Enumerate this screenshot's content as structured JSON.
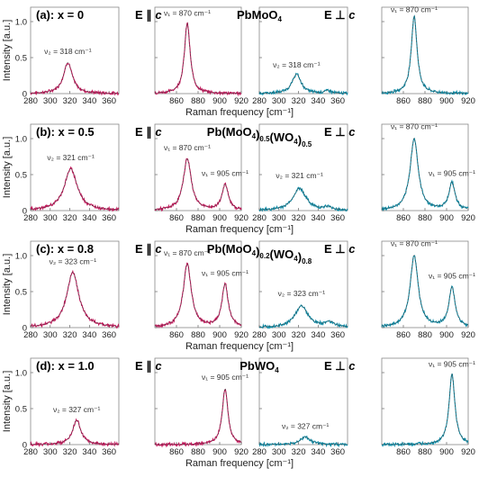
{
  "chart_data": {
    "type": "line",
    "ylabel": "Intensity [a.u.]",
    "xlabel": "Raman frequency [cm⁻¹]",
    "ylim": [
      0,
      1.2
    ],
    "yticks": [
      "0",
      "0.5",
      "1.0"
    ],
    "yticks_values": [
      0,
      0.5,
      1.0
    ],
    "subranges": [
      {
        "xlim": [
          280,
          370
        ],
        "ticks": [
          280,
          300,
          320,
          340,
          360
        ]
      },
      {
        "xlim": [
          840,
          920
        ],
        "ticks": [
          860,
          880,
          900,
          920
        ]
      }
    ],
    "polarization_labels": {
      "parallel": "E ∥ ",
      "perpendicular": "E ⊥ ",
      "axis": "c"
    },
    "colors": {
      "parallel": "#c2185b",
      "perpendicular": "#0e8ba6",
      "fit": "#444444"
    },
    "panels": [
      {
        "label": "(a):  x = 0",
        "formula": "PbMoO",
        "formula_sub": "4",
        "formula_mid": "",
        "formula_sub2": "",
        "parallel_peaks": [
          {
            "center": 318,
            "height": 0.43,
            "width": 5.5
          },
          {
            "center": 870,
            "height": 0.98,
            "width": 3.2
          }
        ],
        "perpendicular_peaks": [
          {
            "center": 318,
            "height": 0.27,
            "width": 5.5
          },
          {
            "center": 350,
            "height": 0.04,
            "width": 4
          },
          {
            "center": 870,
            "height": 1.08,
            "width": 3.2
          }
        ],
        "parallel_annotations": [
          {
            "text": "ν₂ = 318 cm⁻¹",
            "x": 318,
            "y": 0.55
          },
          {
            "text": "ν₁ = 870 cm⁻¹",
            "x": 870,
            "y": 1.08
          }
        ],
        "perpendicular_annotations": [
          {
            "text": "ν₂ = 318 cm⁻¹",
            "x": 318,
            "y": 0.36
          },
          {
            "text": "ν₁ = 870 cm⁻¹",
            "x": 870,
            "y": 1.13
          }
        ]
      },
      {
        "label": "(b):  x = 0.5",
        "formula": "Pb(MoO",
        "formula_sub": "4",
        "formula_mid": ")",
        "formula_sub2": "0.5",
        "formula_tail": "(WO",
        "formula_sub3": "4",
        "formula_tail2": ")",
        "formula_sub4": "0.5",
        "parallel_peaks": [
          {
            "center": 321,
            "height": 0.58,
            "width": 8
          },
          {
            "center": 870,
            "height": 0.72,
            "width": 4.5
          },
          {
            "center": 905,
            "height": 0.36,
            "width": 3.5
          }
        ],
        "perpendicular_peaks": [
          {
            "center": 321,
            "height": 0.31,
            "width": 8
          },
          {
            "center": 350,
            "height": 0.04,
            "width": 5
          },
          {
            "center": 870,
            "height": 1.0,
            "width": 4.5
          },
          {
            "center": 905,
            "height": 0.38,
            "width": 3.5
          }
        ],
        "parallel_annotations": [
          {
            "text": "ν₂ = 321 cm⁻¹",
            "x": 321,
            "y": 0.7
          },
          {
            "text": "ν₁ = 870 cm⁻¹",
            "x": 870,
            "y": 0.84
          },
          {
            "text": "ν₁ = 905 cm⁻¹",
            "x": 905,
            "y": 0.48
          }
        ],
        "perpendicular_annotations": [
          {
            "text": "ν₂ = 321 cm⁻¹",
            "x": 321,
            "y": 0.45
          },
          {
            "text": "ν₁ = 870 cm⁻¹",
            "x": 870,
            "y": 1.13
          },
          {
            "text": "ν₁ = 905 cm⁻¹",
            "x": 905,
            "y": 0.48
          }
        ]
      },
      {
        "label": "(c):  x = 0.8",
        "formula": "Pb(MoO",
        "formula_sub": "4",
        "formula_mid": ")",
        "formula_sub2": "0.2",
        "formula_tail": "(WO",
        "formula_sub3": "4",
        "formula_tail2": ")",
        "formula_sub4": "0.8",
        "parallel_peaks": [
          {
            "center": 323,
            "height": 0.77,
            "width": 7.5
          },
          {
            "center": 870,
            "height": 0.88,
            "width": 4.5
          },
          {
            "center": 905,
            "height": 0.6,
            "width": 3.5
          }
        ],
        "perpendicular_peaks": [
          {
            "center": 323,
            "height": 0.3,
            "width": 8
          },
          {
            "center": 352,
            "height": 0.07,
            "width": 6
          },
          {
            "center": 870,
            "height": 1.0,
            "width": 4.5
          },
          {
            "center": 905,
            "height": 0.55,
            "width": 3.5
          }
        ],
        "parallel_annotations": [
          {
            "text": "ν₂ = 323 cm⁻¹",
            "x": 323,
            "y": 0.88
          },
          {
            "text": "ν₁ = 870 cm⁻¹",
            "x": 870,
            "y": 1.0
          },
          {
            "text": "ν₁ = 905 cm⁻¹",
            "x": 905,
            "y": 0.72
          }
        ],
        "perpendicular_annotations": [
          {
            "text": "ν₂ = 323 cm⁻¹",
            "x": 323,
            "y": 0.44
          },
          {
            "text": "ν₁ = 870 cm⁻¹",
            "x": 870,
            "y": 1.13
          },
          {
            "text": "ν₁ = 905 cm⁻¹",
            "x": 905,
            "y": 0.68
          }
        ]
      },
      {
        "label": "(d):  x = 1.0",
        "formula": "PbWO",
        "formula_sub": "4",
        "formula_mid": "",
        "formula_sub2": "",
        "parallel_peaks": [
          {
            "center": 327,
            "height": 0.34,
            "width": 5
          },
          {
            "center": 905,
            "height": 0.78,
            "width": 3.2
          }
        ],
        "perpendicular_peaks": [
          {
            "center": 327,
            "height": 0.11,
            "width": 6
          },
          {
            "center": 905,
            "height": 0.98,
            "width": 3.2
          }
        ],
        "parallel_annotations": [
          {
            "text": "ν₂ = 327 cm⁻¹",
            "x": 327,
            "y": 0.45
          },
          {
            "text": "ν₁ = 905 cm⁻¹",
            "x": 905,
            "y": 0.9
          }
        ],
        "perpendicular_annotations": [
          {
            "text": "ν₂ = 327 cm⁻¹",
            "x": 327,
            "y": 0.22
          },
          {
            "text": "ν₁ = 905 cm⁻¹",
            "x": 905,
            "y": 1.08
          }
        ]
      }
    ]
  }
}
